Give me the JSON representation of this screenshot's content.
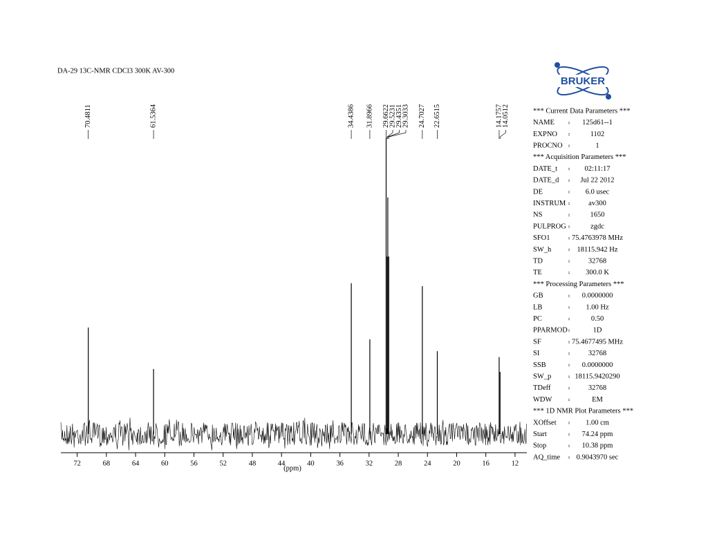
{
  "chart_data": {
    "type": "spectrum",
    "title": "DA-29  13C-NMR  CDCl3  300K AV-300",
    "x_label": "(ppm)",
    "x": [
      70.4811,
      61.5364,
      34.4386,
      31.8966,
      29.6622,
      29.5231,
      29.4351,
      29.3033,
      24.7027,
      22.6515,
      14.1757,
      14.0512
    ],
    "values": [
      36,
      22,
      51,
      32,
      100,
      60,
      80,
      60,
      50,
      28,
      26,
      21
    ],
    "color": "#000000",
    "xlim": [
      74.24,
      10.38
    ],
    "xticks": [
      72,
      68,
      64,
      60,
      56,
      52,
      48,
      44,
      40,
      36,
      32,
      28,
      24,
      20,
      16,
      12
    ],
    "ylim": [
      0,
      100
    ]
  },
  "logo": "BRUKER",
  "parameters": [
    {
      "heading": "*** Current Data Parameters ***"
    },
    {
      "name": "NAME",
      "value": "125d61--1"
    },
    {
      "name": "EXPNO",
      "value": "1102"
    },
    {
      "name": "PROCNO",
      "value": "1"
    },
    {
      "heading": "*** Acquisition  Parameters ***"
    },
    {
      "name": "DATE_t",
      "value": "02:11:17"
    },
    {
      "name": "DATE_d",
      "value": "Jul 22 2012"
    },
    {
      "name": "DE",
      "value": "6.0 usec"
    },
    {
      "name": "INSTRUM",
      "value": "av300"
    },
    {
      "name": "NS",
      "value": "1650"
    },
    {
      "name": "PULPROG",
      "value": "zgdc"
    },
    {
      "name": "SFO1",
      "value": "75.4763978 MHz"
    },
    {
      "name": "SW_h",
      "value": "18115.942 Hz"
    },
    {
      "name": "TD",
      "value": "32768"
    },
    {
      "name": "TE",
      "value": "300.0 K"
    },
    {
      "heading": "*** Processing Parameters ***"
    },
    {
      "name": "GB",
      "value": "0.0000000"
    },
    {
      "name": "LB",
      "value": "1.00 Hz"
    },
    {
      "name": "PC",
      "value": "0.50"
    },
    {
      "name": "PPARMOD",
      "value": "1D"
    },
    {
      "name": "SF",
      "value": "75.4677495 MHz"
    },
    {
      "name": "SI",
      "value": "32768"
    },
    {
      "name": "SSB",
      "value": "0.0000000"
    },
    {
      "name": "SW_p",
      "value": "18115.9420290"
    },
    {
      "name": "TDeff",
      "value": "32768"
    },
    {
      "name": "WDW",
      "value": "EM"
    },
    {
      "heading": "*** 1D NMR Plot Parameters ***"
    },
    {
      "name": "XOffset",
      "value": "1.00 cm"
    },
    {
      "name": "Start",
      "value": "74.24 ppm"
    },
    {
      "name": "Stop",
      "value": "10.38 ppm"
    },
    {
      "name": "AQ_time",
      "value": "0.9043970 sec"
    }
  ]
}
